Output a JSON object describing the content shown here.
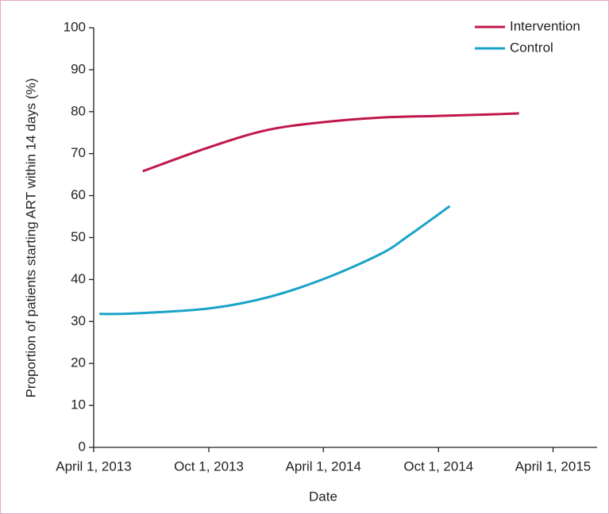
{
  "chart_data": {
    "type": "line",
    "x_label": "Date",
    "y_label": "Proportion of patients starting ART within 14 days (%)",
    "series": [
      {
        "name": "Intervention",
        "color": "#c0174a",
        "x": [
          "2013-06-18",
          "2013-10-01",
          "2014-01-01",
          "2014-04-01",
          "2014-07-01",
          "2014-10-01",
          "2015-01-01",
          "2015-02-06"
        ],
        "values": [
          65.8,
          71.5,
          75.6,
          77.5,
          78.6,
          79,
          79.4,
          79.6
        ]
      },
      {
        "name": "Control",
        "color": "#1aa3c8",
        "x": [
          "2013-04-10",
          "2013-06-01",
          "2013-10-01",
          "2014-01-01",
          "2014-04-01",
          "2014-07-01",
          "2014-08-15",
          "2014-10-19"
        ],
        "values": [
          31.8,
          31.9,
          33.1,
          35.7,
          40.1,
          46.1,
          50.5,
          57.5
        ]
      }
    ],
    "xlim": [
      "2013-04-01",
      "2015-06-10"
    ],
    "xticks": [
      {
        "value": "2013-04-01",
        "label": "April 1, 2013"
      },
      {
        "value": "2013-10-01",
        "label": "Oct 1, 2013"
      },
      {
        "value": "2014-04-01",
        "label": "April 1, 2014"
      },
      {
        "value": "2014-10-01",
        "label": "Oct 1, 2014"
      },
      {
        "value": "2015-04-01",
        "label": "April 1, 2015"
      }
    ],
    "ylim": [
      0,
      100
    ],
    "yticks": [
      0,
      10,
      20,
      30,
      40,
      50,
      60,
      70,
      80,
      90,
      100
    ],
    "legend": "top-right"
  }
}
